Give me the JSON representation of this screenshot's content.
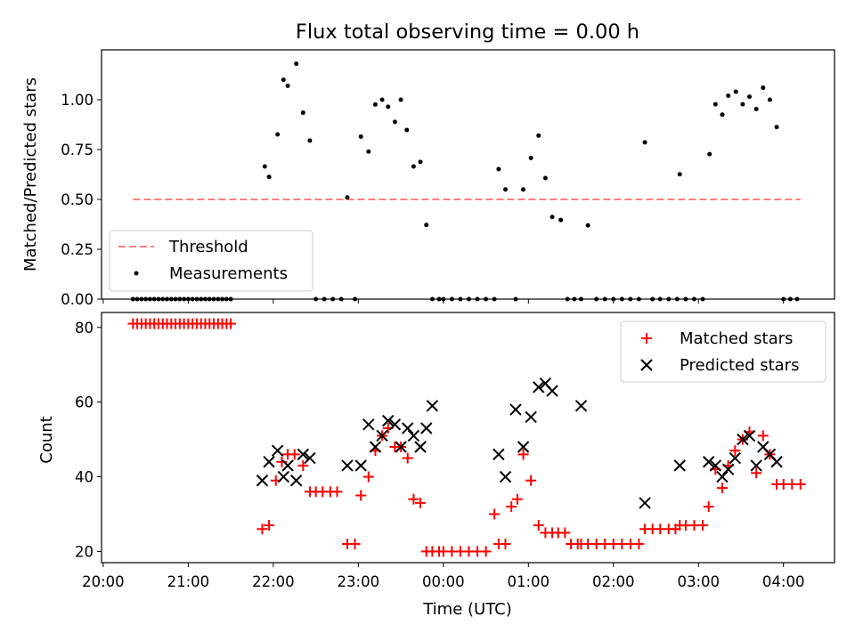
{
  "chart_data": [
    {
      "type": "scatter",
      "title": "Flux total observing time = 0.00 h",
      "ylabel": "Matched/Predicted stars",
      "xlabel": "",
      "x_unit": "hours after 20:00 UTC",
      "xlim": [
        -0.02,
        8.6
      ],
      "ylim": [
        0,
        1.25
      ],
      "yticks": [
        0.0,
        0.25,
        0.5,
        0.75,
        1.0
      ],
      "ytick_labels": [
        "0.00",
        "0.25",
        "0.50",
        "0.75",
        "1.00"
      ],
      "grid": false,
      "legend_position": "lower-left",
      "threshold": {
        "name": "Threshold",
        "value": 0.5,
        "x_range": [
          0.35,
          8.2
        ],
        "color": "#ff7f7f",
        "style": "dashed"
      },
      "series": [
        {
          "name": "Measurements",
          "color": "#000000",
          "marker": "dot",
          "x": [
            0.35,
            0.4,
            0.45,
            0.5,
            0.55,
            0.6,
            0.65,
            0.7,
            0.75,
            0.8,
            0.85,
            0.9,
            0.95,
            1.0,
            1.05,
            1.1,
            1.15,
            1.2,
            1.25,
            1.3,
            1.35,
            1.4,
            1.45,
            1.5,
            1.9,
            1.95,
            2.05,
            2.12,
            2.17,
            2.27,
            2.35,
            2.43,
            2.5,
            2.6,
            2.7,
            2.8,
            2.87,
            2.96,
            3.03,
            3.12,
            3.2,
            3.28,
            3.35,
            3.43,
            3.5,
            3.57,
            3.65,
            3.73,
            3.8,
            3.87,
            3.95,
            4.0,
            4.1,
            4.2,
            4.3,
            4.4,
            4.5,
            4.6,
            4.65,
            4.73,
            4.85,
            4.94,
            5.03,
            5.12,
            5.2,
            5.28,
            5.38,
            5.46,
            5.54,
            5.62,
            5.7,
            5.8,
            5.9,
            6.0,
            6.1,
            6.2,
            6.3,
            6.37,
            6.46,
            6.55,
            6.65,
            6.75,
            6.78,
            6.85,
            6.95,
            7.05,
            7.13,
            7.2,
            7.28,
            7.35,
            7.44,
            7.52,
            7.6,
            7.68,
            7.76,
            7.84,
            7.92,
            8.0,
            8.08,
            8.16
          ],
          "y": [
            0,
            0,
            0,
            0,
            0,
            0,
            0,
            0,
            0,
            0,
            0,
            0,
            0,
            0,
            0,
            0,
            0,
            0,
            0,
            0,
            0,
            0,
            0,
            0,
            0.665,
            0.613,
            0.826,
            1.1,
            1.07,
            1.18,
            0.935,
            0.795,
            0,
            0,
            0,
            0,
            0.51,
            0,
            0.815,
            0.74,
            0.976,
            1.0,
            0.965,
            0.889,
            1.0,
            0.848,
            0.665,
            0.688,
            0.372,
            0,
            0,
            0,
            0,
            0,
            0,
            0,
            0,
            0,
            0.652,
            0.55,
            0,
            0.55,
            0.708,
            0.82,
            0.607,
            0.412,
            0.397,
            0,
            0,
            0,
            0.37,
            0,
            0,
            0,
            0,
            0,
            0,
            0.786,
            0,
            0,
            0,
            0,
            0.626,
            0,
            0,
            0,
            0.727,
            0.977,
            0.925,
            1.02,
            1.04,
            0.977,
            1.015,
            0.953,
            1.06,
            1.0,
            0.863,
            0,
            0,
            0
          ]
        }
      ]
    },
    {
      "type": "scatter",
      "title": "",
      "ylabel": "Count",
      "xlabel": "Time (UTC)",
      "x_unit": "hours after 20:00 UTC",
      "xlim": [
        -0.02,
        8.6
      ],
      "ylim": [
        17,
        84
      ],
      "yticks": [
        20,
        40,
        60,
        80
      ],
      "ytick_labels": [
        "20",
        "40",
        "60",
        "80"
      ],
      "xticks": [
        0,
        1,
        2,
        3,
        4,
        5,
        6,
        7,
        8
      ],
      "xtick_labels": [
        "20:00",
        "21:00",
        "22:00",
        "23:00",
        "00:00",
        "01:00",
        "02:00",
        "03:00",
        "04:00"
      ],
      "grid": false,
      "legend_position": "top-right",
      "series": [
        {
          "name": "Matched stars",
          "color": "#ff0000",
          "marker": "plus",
          "x": [
            0.35,
            0.4,
            0.45,
            0.5,
            0.55,
            0.6,
            0.65,
            0.7,
            0.75,
            0.8,
            0.85,
            0.9,
            0.95,
            1.0,
            1.05,
            1.1,
            1.15,
            1.2,
            1.25,
            1.3,
            1.35,
            1.4,
            1.45,
            1.5,
            1.87,
            1.95,
            2.03,
            2.1,
            2.17,
            2.25,
            2.35,
            2.43,
            2.5,
            2.58,
            2.67,
            2.75,
            2.87,
            2.96,
            3.03,
            3.12,
            3.2,
            3.28,
            3.35,
            3.43,
            3.5,
            3.58,
            3.65,
            3.73,
            3.8,
            3.87,
            3.95,
            4.0,
            4.1,
            4.2,
            4.3,
            4.4,
            4.5,
            4.6,
            4.65,
            4.73,
            4.8,
            4.87,
            4.94,
            5.03,
            5.12,
            5.2,
            5.28,
            5.35,
            5.43,
            5.5,
            5.58,
            5.62,
            5.7,
            5.8,
            5.9,
            6.0,
            6.1,
            6.2,
            6.3,
            6.37,
            6.46,
            6.55,
            6.65,
            6.73,
            6.78,
            6.85,
            6.95,
            7.05,
            7.12,
            7.2,
            7.28,
            7.35,
            7.43,
            7.52,
            7.6,
            7.68,
            7.76,
            7.84,
            7.92,
            8.0,
            8.1,
            8.2
          ],
          "y": [
            81,
            81,
            81,
            81,
            81,
            81,
            81,
            81,
            81,
            81,
            81,
            81,
            81,
            81,
            81,
            81,
            81,
            81,
            81,
            81,
            81,
            81,
            81,
            81,
            26,
            27,
            39,
            44,
            46,
            46,
            43,
            36,
            36,
            36,
            36,
            36,
            22,
            22,
            35,
            40,
            47,
            51,
            53,
            48,
            48,
            45,
            34,
            33,
            20,
            20,
            20,
            20,
            20,
            20,
            20,
            20,
            20,
            30,
            22,
            22,
            32,
            34,
            46,
            39,
            27,
            25,
            25,
            25,
            25,
            22,
            22,
            22,
            22,
            22,
            22,
            22,
            22,
            22,
            22,
            26,
            26,
            26,
            26,
            26,
            27,
            27,
            27,
            27,
            32,
            42,
            37,
            43,
            47,
            50,
            52,
            41,
            51,
            46,
            38,
            38,
            38,
            38
          ]
        },
        {
          "name": "Predicted stars",
          "color": "#000000",
          "marker": "x",
          "x": [
            1.87,
            1.95,
            2.05,
            2.12,
            2.17,
            2.27,
            2.35,
            2.43,
            2.87,
            3.03,
            3.12,
            3.2,
            3.28,
            3.35,
            3.43,
            3.5,
            3.58,
            3.65,
            3.73,
            3.8,
            3.87,
            4.65,
            4.73,
            4.85,
            4.94,
            5.03,
            5.12,
            5.2,
            5.28,
            5.62,
            6.37,
            6.78,
            7.12,
            7.2,
            7.28,
            7.35,
            7.43,
            7.52,
            7.6,
            7.68,
            7.76,
            7.84,
            7.92
          ],
          "y": [
            39,
            44,
            47,
            40,
            43,
            39,
            46,
            45,
            43,
            43,
            54,
            48,
            51,
            55,
            54,
            48,
            53,
            51,
            48,
            53,
            59,
            46,
            40,
            58,
            48,
            56,
            64,
            65,
            63,
            59,
            33,
            43,
            44,
            43,
            40,
            42,
            45,
            50,
            51,
            43,
            48,
            46,
            44
          ]
        }
      ]
    }
  ]
}
